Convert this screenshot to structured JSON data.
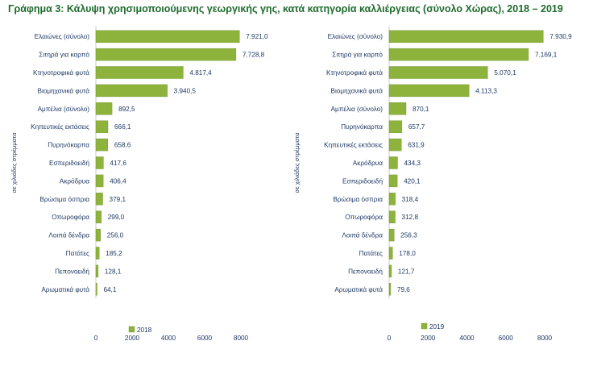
{
  "title": "Γράφημα 3: Κάλυψη χρησιμοποιούμενης γεωργικής γης, κατά κατηγορία καλλιέργειας (σύνολο Χώρας), 2018 – 2019",
  "colors": {
    "bar": "#8db33c",
    "bar_edge": "#6f9328",
    "text": "#1f3864",
    "title": "#1f6b2e"
  },
  "chart_data": [
    {
      "type": "bar",
      "orientation": "horizontal",
      "ylabel": "σε χιλιάδες στρέμματα",
      "xlim": [
        0,
        8000
      ],
      "xticks": [
        0,
        2000,
        4000,
        6000,
        8000
      ],
      "xtick_labels": [
        "0",
        "2000",
        "4000",
        "6000",
        "8000"
      ],
      "legend_position": "bottom-left",
      "grid": false,
      "series": [
        {
          "name": "2018",
          "categories": [
            "Ελαιώνες (σύνολο)",
            "Σιτηρά για καρπό",
            "Κτηνοτροφικά φυτά",
            "Βιομηχανικά φυτά",
            "Αμπέλια (σύνολο)",
            "Κηπευτικές εκτάσεις",
            "Πυρηνόκαρπα",
            "Εσπεριδοειδή",
            "Ακρόδρυα",
            "Βρώσιμα όσπρια",
            "Οπωροφόρα",
            "Λοιπά δένδρα",
            "Πατάτες",
            "Πεπονοειδή",
            "Αρωματικά φυτά"
          ],
          "values": [
            7921.0,
            7728.8,
            4817.4,
            3940.5,
            892.5,
            666.1,
            658.6,
            417.6,
            406.4,
            379.1,
            299.0,
            256.0,
            185.2,
            128.1,
            64.1
          ],
          "labels": [
            "7.921,0",
            "7.728,8",
            "4.817,4",
            "3.940,5",
            "892,5",
            "666,1",
            "658,6",
            "417,6",
            "406,4",
            "379,1",
            "299,0",
            "256,0",
            "185,2",
            "128,1",
            "64,1"
          ]
        }
      ]
    },
    {
      "type": "bar",
      "orientation": "horizontal",
      "ylabel": "σε χιλιάδες στρέμματα",
      "xlim": [
        0,
        8000
      ],
      "xticks": [
        0,
        2000,
        4000,
        6000,
        8000
      ],
      "xtick_labels": [
        "0",
        "2000",
        "4000",
        "6000",
        "8000"
      ],
      "legend_position": "bottom-left",
      "grid": false,
      "series": [
        {
          "name": "2019",
          "categories": [
            "Ελαιώνες (σύνολο)",
            "Σιτηρά για καρπό",
            "Κτηνοτροφικά φυτά",
            "Βιομηχανικά φυτά",
            "Αμπέλια (σύνολο)",
            "Πυρηνόκαρπα",
            "Κηπευτικές εκτάσεις",
            "Ακρόδρυα",
            "Εσπεριδοειδή",
            "Βρώσιμα όσπρια",
            "Οπωροφόρα",
            "Λοιπά δένδρα",
            "Πατάτες",
            "Πεπονοειδή",
            "Αρωματικά φυτά"
          ],
          "values": [
            7930.9,
            7169.1,
            5070.1,
            4113.3,
            870.1,
            657.7,
            631.9,
            434.3,
            420.1,
            318.4,
            312.8,
            256.3,
            178.0,
            121.7,
            79.6
          ],
          "labels": [
            "7.930,9",
            "7.169,1",
            "5.070,1",
            "4.113,3",
            "870,1",
            "657,7",
            "631,9",
            "434,3",
            "420,1",
            "318,4",
            "312,8",
            "256,3",
            "178,0",
            "121,7",
            "79,6"
          ]
        }
      ]
    }
  ]
}
